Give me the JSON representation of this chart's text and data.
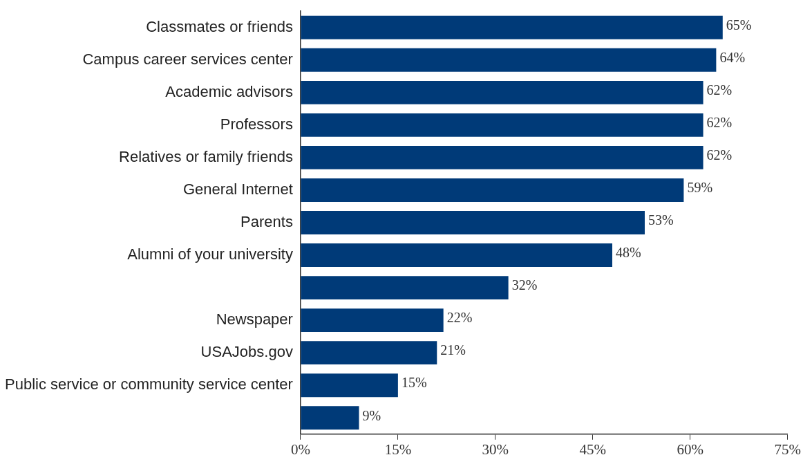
{
  "chart_data": {
    "type": "bar",
    "orientation": "horizontal",
    "categories": [
      "Classmates or friends",
      "Campus career services center",
      "Academic advisors",
      "Professors",
      "Relatives or family friends",
      "General Internet",
      "Parents",
      "Alumni of your university",
      null,
      "Newspaper",
      "USAJobs.gov",
      "Public service or community service center",
      null
    ],
    "values": [
      65,
      64,
      62,
      62,
      62,
      59,
      53,
      48,
      32,
      22,
      21,
      15,
      9
    ],
    "value_labels": [
      "65%",
      "64%",
      "62%",
      "62%",
      "62%",
      "59%",
      "53%",
      "48%",
      "32%",
      "22%",
      "21%",
      "15%",
      "9%"
    ],
    "color": "#003a78",
    "xlim": [
      0,
      75
    ],
    "xticks": [
      {
        "value": 0,
        "label": "0%"
      },
      {
        "value": 15,
        "label": "15%"
      },
      {
        "value": 30,
        "label": "30%"
      },
      {
        "value": 45,
        "label": "45%"
      },
      {
        "value": 60,
        "label": "60%"
      },
      {
        "value": 75,
        "label": "75%"
      }
    ],
    "grid": false,
    "legend": false
  }
}
